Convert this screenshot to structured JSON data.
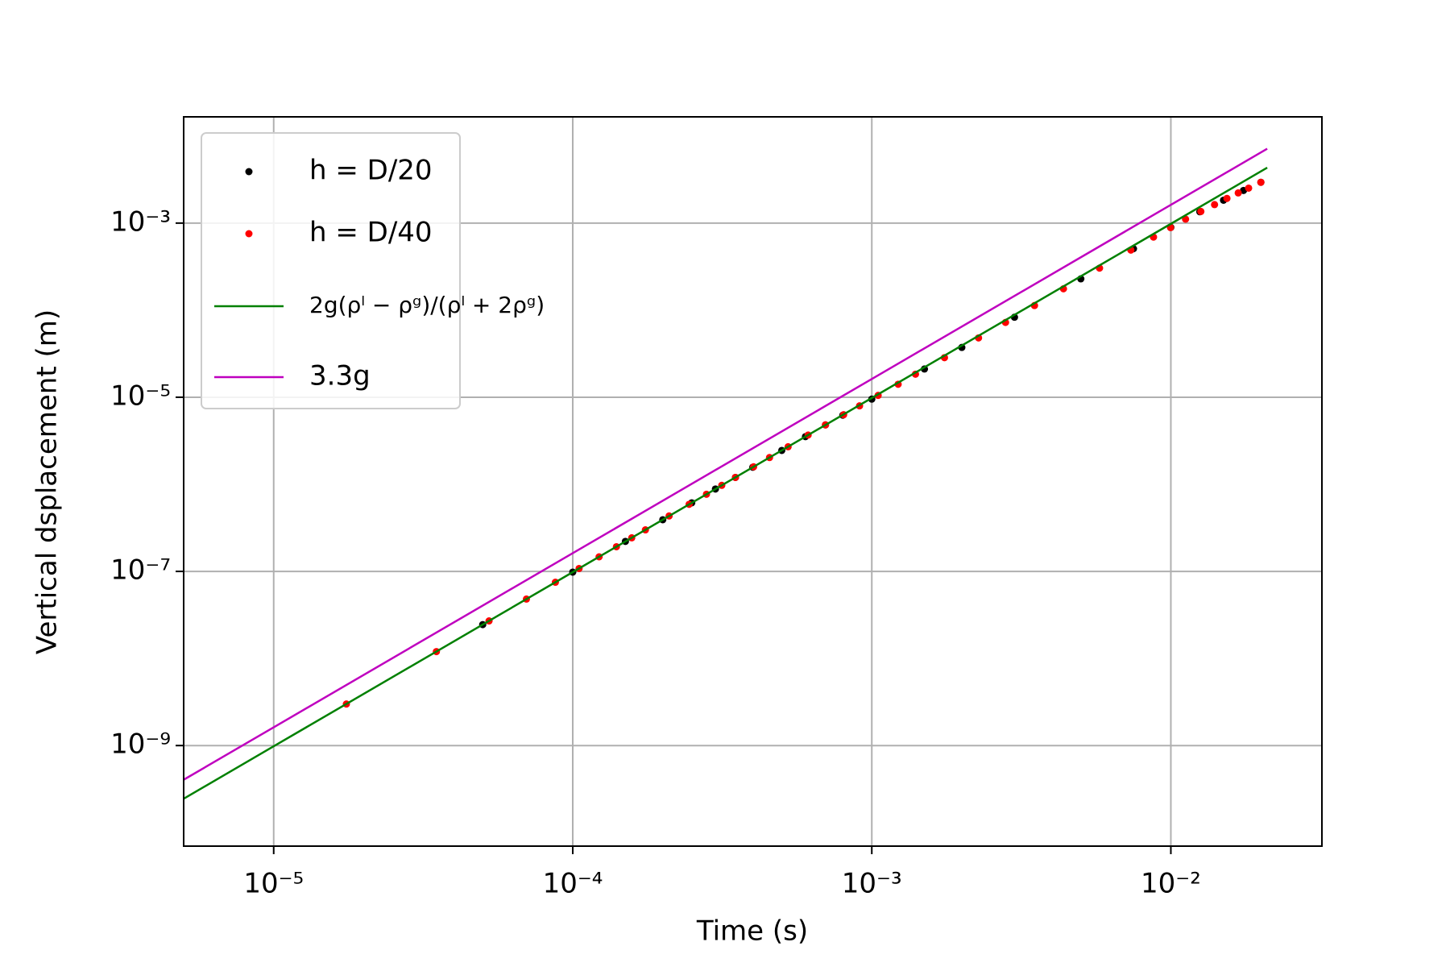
{
  "chart_data": {
    "type": "scatter",
    "xlabel": "Time (s)",
    "ylabel": "Vertical dsplacement (m)",
    "log_x": true,
    "log_y": true,
    "grid": true,
    "legend": "upper left",
    "xlim": [
      5e-06,
      0.032
    ],
    "ylim": [
      7e-11,
      0.0166
    ],
    "xticks": [
      {
        "value": 1e-05,
        "label": "10⁻⁵"
      },
      {
        "value": 0.0001,
        "label": "10⁻⁴"
      },
      {
        "value": 0.001,
        "label": "10⁻³"
      },
      {
        "value": 0.01,
        "label": "10⁻²"
      }
    ],
    "yticks": [
      {
        "value": 1e-09,
        "label": "10⁻⁹"
      },
      {
        "value": 1e-07,
        "label": "10⁻⁷"
      },
      {
        "value": 1e-05,
        "label": "10⁻⁵"
      },
      {
        "value": 0.001,
        "label": "10⁻³"
      }
    ],
    "series": [
      {
        "name": "h = D/20",
        "color": "#000000",
        "kind": "points",
        "x": [
          5e-05,
          0.0001,
          0.00015,
          0.0002,
          0.00025,
          0.0003,
          0.00035,
          0.0004,
          0.0005,
          0.0006,
          0.0007,
          0.0008,
          0.001,
          0.0015,
          0.002,
          0.003,
          0.005,
          0.0075,
          0.01,
          0.0125,
          0.015,
          0.0175,
          0.02
        ],
        "values": [
          2.45e-08,
          9.81e-08,
          2.21e-07,
          3.92e-07,
          6.13e-07,
          8.83e-07,
          1.2e-06,
          1.57e-06,
          2.45e-06,
          3.53e-06,
          4.81e-06,
          6.22e-06,
          9.52e-06,
          2.11e-05,
          3.73e-05,
          8.3e-05,
          0.000229,
          0.000508,
          0.000893,
          0.00135,
          0.00183,
          0.00237,
          0.00294
        ]
      },
      {
        "name": "h = D/40",
        "color": "#ff0000",
        "kind": "points",
        "x": [
          1.75e-05,
          3.5e-05,
          5.25e-05,
          7e-05,
          8.75e-05,
          0.000105,
          0.0001225,
          0.00014,
          0.0001575,
          0.000175,
          0.00021,
          0.000245,
          0.00028,
          0.000315,
          0.00035,
          0.0004025,
          0.000455,
          0.000525,
          0.0006125,
          0.0007,
          0.000805,
          0.00091,
          0.00105,
          0.001225,
          0.0014,
          0.00175,
          0.002275,
          0.0028,
          0.0035,
          0.004375,
          0.005775,
          0.00735,
          0.00875,
          0.009975,
          0.0112,
          0.0126,
          0.014,
          0.0154,
          0.0168,
          0.0182,
          0.02
        ],
        "values": [
          3e-09,
          1.2e-08,
          2.7e-08,
          4.81e-08,
          7.51e-08,
          1.08e-07,
          1.47e-07,
          1.92e-07,
          2.43e-07,
          3e-07,
          4.33e-07,
          5.89e-07,
          7.69e-07,
          9.73e-07,
          1.2e-06,
          1.59e-06,
          2.03e-06,
          2.7e-06,
          3.68e-06,
          4.81e-06,
          6.3e-06,
          7.96e-06,
          1.05e-05,
          1.41e-05,
          1.84e-05,
          2.85e-05,
          4.8e-05,
          7.23e-05,
          0.000113,
          0.000176,
          0.000304,
          0.00049,
          0.000691,
          0.000888,
          0.00111,
          0.00136,
          0.00163,
          0.00192,
          0.00222,
          0.00252,
          0.00294
        ]
      },
      {
        "name": "2g(ρˡ − ρᵍ)/(ρˡ + 2ρᵍ)",
        "color": "#008000",
        "kind": "line",
        "x": [
          5e-06,
          1e-05,
          0.0001,
          0.001,
          0.01,
          0.021
        ],
        "values": [
          2.45e-10,
          9.81e-10,
          9.81e-08,
          9.81e-06,
          0.000981,
          0.00433
        ]
      },
      {
        "name": "3.3g",
        "color": "#bf00bf",
        "kind": "line",
        "x": [
          5e-06,
          1e-05,
          0.0001,
          0.001,
          0.01,
          0.021
        ],
        "values": [
          4.05e-10,
          1.62e-09,
          1.62e-07,
          1.62e-05,
          0.00162,
          0.00714
        ]
      }
    ]
  }
}
